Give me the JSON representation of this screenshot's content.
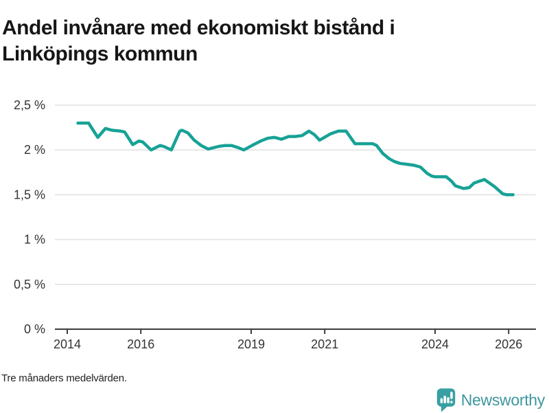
{
  "header": {
    "title": "Andel invånare med ekonomiskt bistånd i\nLinköpings kommun"
  },
  "footer": {
    "note": "Tre månaders medelvärden.",
    "brand": {
      "name": "Newsworthy",
      "icon": "bar-chart-speech-bubble-icon",
      "icon_color": "#38a0a2",
      "text_color": "#3f96a0"
    }
  },
  "chart_data": {
    "type": "line",
    "title": "Andel invånare med ekonomiskt bistånd i Linköpings kommun",
    "xlabel": "",
    "ylabel": "",
    "unit": "%",
    "grid": true,
    "legend": "none",
    "line_color": "#17a296",
    "gridline_color": "#e2e2e2",
    "axis_color": "#3d3d3d",
    "xlim": [
      2013.76,
      2026.54
    ],
    "ylim": [
      0,
      2.5
    ],
    "y_ticks": [
      {
        "value": 0,
        "label": "0 %"
      },
      {
        "value": 0.5,
        "label": "0,5 %"
      },
      {
        "value": 1,
        "label": "1 %"
      },
      {
        "value": 1.5,
        "label": "1,5 %"
      },
      {
        "value": 2,
        "label": "2 %"
      },
      {
        "value": 2.5,
        "label": "2,5 %"
      }
    ],
    "x_ticks": [
      {
        "value": 2014,
        "label": "2014"
      },
      {
        "value": 2016,
        "label": "2016"
      },
      {
        "value": 2019,
        "label": "2019"
      },
      {
        "value": 2021,
        "label": "2021"
      },
      {
        "value": 2024,
        "label": "2024"
      },
      {
        "value": 2026,
        "label": "2026"
      }
    ],
    "series": [
      {
        "name": "Andel invånare med ekonomiskt bistånd",
        "points": [
          [
            2014.29,
            2.3
          ],
          [
            2014.58,
            2.3
          ],
          [
            2014.83,
            2.14
          ],
          [
            2015.04,
            2.24
          ],
          [
            2015.21,
            2.22
          ],
          [
            2015.45,
            2.21
          ],
          [
            2015.56,
            2.2
          ],
          [
            2015.78,
            2.06
          ],
          [
            2015.95,
            2.1
          ],
          [
            2016.05,
            2.09
          ],
          [
            2016.28,
            2.0
          ],
          [
            2016.52,
            2.05
          ],
          [
            2016.62,
            2.04
          ],
          [
            2016.83,
            2.0
          ],
          [
            2017.06,
            2.21
          ],
          [
            2017.12,
            2.22
          ],
          [
            2017.28,
            2.19
          ],
          [
            2017.45,
            2.11
          ],
          [
            2017.64,
            2.05
          ],
          [
            2017.83,
            2.01
          ],
          [
            2018.12,
            2.04
          ],
          [
            2018.3,
            2.05
          ],
          [
            2018.46,
            2.05
          ],
          [
            2018.62,
            2.03
          ],
          [
            2018.8,
            2.0
          ],
          [
            2019.07,
            2.06
          ],
          [
            2019.26,
            2.1
          ],
          [
            2019.45,
            2.13
          ],
          [
            2019.63,
            2.14
          ],
          [
            2019.82,
            2.12
          ],
          [
            2020.02,
            2.15
          ],
          [
            2020.2,
            2.15
          ],
          [
            2020.38,
            2.16
          ],
          [
            2020.57,
            2.21
          ],
          [
            2020.72,
            2.17
          ],
          [
            2020.86,
            2.11
          ],
          [
            2021.16,
            2.18
          ],
          [
            2021.37,
            2.21
          ],
          [
            2021.58,
            2.21
          ],
          [
            2021.82,
            2.07
          ],
          [
            2022.3,
            2.07
          ],
          [
            2022.41,
            2.05
          ],
          [
            2022.58,
            1.96
          ],
          [
            2022.76,
            1.9
          ],
          [
            2022.9,
            1.87
          ],
          [
            2023.05,
            1.85
          ],
          [
            2023.24,
            1.84
          ],
          [
            2023.42,
            1.83
          ],
          [
            2023.6,
            1.81
          ],
          [
            2023.78,
            1.74
          ],
          [
            2023.9,
            1.71
          ],
          [
            2024.0,
            1.7
          ],
          [
            2024.3,
            1.7
          ],
          [
            2024.45,
            1.65
          ],
          [
            2024.55,
            1.6
          ],
          [
            2024.77,
            1.57
          ],
          [
            2024.93,
            1.58
          ],
          [
            2025.06,
            1.63
          ],
          [
            2025.2,
            1.65
          ],
          [
            2025.34,
            1.67
          ],
          [
            2025.48,
            1.63
          ],
          [
            2025.62,
            1.59
          ],
          [
            2025.73,
            1.55
          ],
          [
            2025.84,
            1.51
          ],
          [
            2025.95,
            1.5
          ],
          [
            2026.12,
            1.5
          ]
        ]
      }
    ]
  }
}
